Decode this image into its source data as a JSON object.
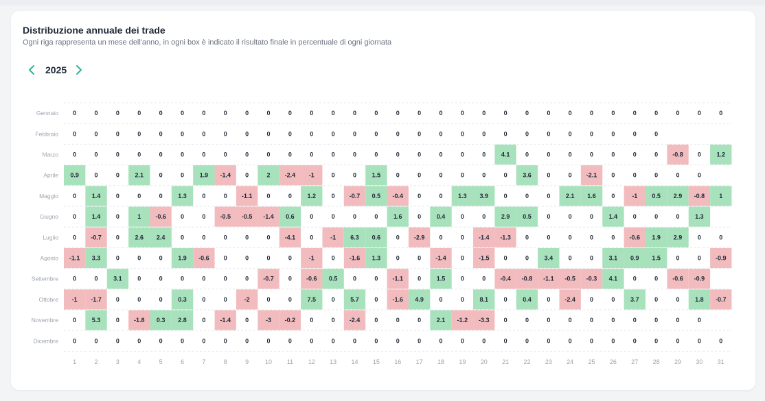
{
  "panel": {
    "title": "Distribuzione annuale dei trade",
    "subtitle": "Ogni riga rappresenta un mese dell'anno, in ogni box è indicato il risultato finale in percentuale di ogni giornata"
  },
  "year_nav": {
    "year": "2025",
    "prev_icon": "chevron-left-icon",
    "next_icon": "chevron-right-icon",
    "accent": "#2bb39a"
  },
  "colors": {
    "positive": "#a8e2bc",
    "negative": "#f2bcbf",
    "zero": "#ffffff"
  },
  "chart_data": {
    "type": "heatmap",
    "xlabel": "",
    "ylabel": "",
    "x": [
      "1",
      "2",
      "3",
      "4",
      "5",
      "6",
      "7",
      "8",
      "9",
      "10",
      "11",
      "12",
      "13",
      "14",
      "15",
      "16",
      "17",
      "18",
      "19",
      "20",
      "21",
      "22",
      "23",
      "24",
      "25",
      "26",
      "27",
      "28",
      "29",
      "30",
      "31"
    ],
    "rows": [
      {
        "label": "Gennaio",
        "values": [
          0,
          0,
          0,
          0,
          0,
          0,
          0,
          0,
          0,
          0,
          0,
          0,
          0,
          0,
          0,
          0,
          0,
          0,
          0,
          0,
          0,
          0,
          0,
          0,
          0,
          0,
          0,
          0,
          0,
          0,
          0
        ]
      },
      {
        "label": "Febbraio",
        "values": [
          0,
          0,
          0,
          0,
          0,
          0,
          0,
          0,
          0,
          0,
          0,
          0,
          0,
          0,
          0,
          0,
          0,
          0,
          0,
          0,
          0,
          0,
          0,
          0,
          0,
          0,
          0,
          0
        ]
      },
      {
        "label": "Marzo",
        "values": [
          0,
          0,
          0,
          0,
          0,
          0,
          0,
          0,
          0,
          0,
          0,
          0,
          0,
          0,
          0,
          0,
          0,
          0,
          0,
          0,
          4.1,
          0,
          0,
          0,
          0,
          0,
          0,
          0,
          -0.8,
          0,
          1.2
        ]
      },
      {
        "label": "Aprile",
        "values": [
          0.9,
          0,
          0,
          2.1,
          0,
          0,
          1.9,
          -1.4,
          0,
          2,
          -2.4,
          -1,
          0,
          0,
          1.5,
          0,
          0,
          0,
          0,
          0,
          0,
          3.6,
          0,
          0,
          -2.1,
          0,
          0,
          0,
          0,
          0
        ]
      },
      {
        "label": "Maggio",
        "values": [
          0,
          1.4,
          0,
          0,
          0,
          1.3,
          0,
          0,
          -1.1,
          0,
          0,
          1.2,
          0,
          -0.7,
          0.5,
          -0.4,
          0,
          0,
          1.3,
          3.9,
          0,
          0,
          0,
          2.1,
          1.6,
          0,
          -1,
          0.5,
          2.9,
          -0.8,
          1
        ]
      },
      {
        "label": "Giugno",
        "values": [
          0,
          1.4,
          0,
          1,
          -0.6,
          0,
          0,
          -0.5,
          -0.5,
          -1.4,
          0.6,
          0,
          0,
          0,
          0,
          1.6,
          0,
          0.4,
          0,
          0,
          2.9,
          0.5,
          0,
          0,
          0,
          1.4,
          0,
          0,
          0,
          1.3
        ]
      },
      {
        "label": "Luglio",
        "values": [
          0,
          -0.7,
          0,
          2.6,
          2.4,
          0,
          0,
          0,
          0,
          0,
          -4.1,
          0,
          -1,
          6.3,
          0.6,
          0,
          -2.9,
          0,
          0,
          -1.4,
          -1.3,
          0,
          0,
          0,
          0,
          0,
          -0.6,
          1.9,
          2.9,
          0,
          0
        ]
      },
      {
        "label": "Agosto",
        "values": [
          -1.1,
          3.3,
          0,
          0,
          0,
          1.9,
          -0.6,
          0,
          0,
          0,
          0,
          -1,
          0,
          -1.6,
          1.3,
          0,
          0,
          -1.4,
          0,
          -1.5,
          0,
          0,
          3.4,
          0,
          0,
          3.1,
          0.9,
          1.5,
          0,
          0,
          -0.9
        ]
      },
      {
        "label": "Settembre",
        "values": [
          0,
          0,
          3.1,
          0,
          0,
          0,
          0,
          0,
          0,
          -0.7,
          0,
          -0.6,
          0.5,
          0,
          0,
          -1.1,
          0,
          1.5,
          0,
          0,
          -0.4,
          -0.8,
          -1.1,
          -0.5,
          -0.3,
          4.1,
          0,
          0,
          -0.6,
          -0.9
        ]
      },
      {
        "label": "Ottobre",
        "values": [
          -1,
          -1.7,
          0,
          0,
          0,
          0.3,
          0,
          0,
          -2,
          0,
          0,
          7.5,
          0,
          5.7,
          0,
          -1.6,
          4.9,
          0,
          0,
          8.1,
          0,
          0.4,
          0,
          -2.4,
          0,
          0,
          3.7,
          0,
          0,
          1.8,
          -0.7
        ]
      },
      {
        "label": "Novembre",
        "values": [
          0,
          5.3,
          0,
          -1.8,
          0.3,
          2.8,
          0,
          -1.4,
          0,
          -3,
          -0.2,
          0,
          0,
          -2.4,
          0,
          0,
          0,
          2.1,
          -1.2,
          -3.3,
          0,
          0,
          0,
          0,
          0,
          0,
          0,
          0,
          0,
          0
        ]
      },
      {
        "label": "Dicembre",
        "values": [
          0,
          0,
          0,
          0,
          0,
          0,
          0,
          0,
          0,
          0,
          0,
          0,
          0,
          0,
          0,
          0,
          0,
          0,
          0,
          0,
          0,
          0,
          0,
          0,
          0,
          0,
          0,
          0,
          0,
          0,
          0
        ]
      }
    ]
  }
}
